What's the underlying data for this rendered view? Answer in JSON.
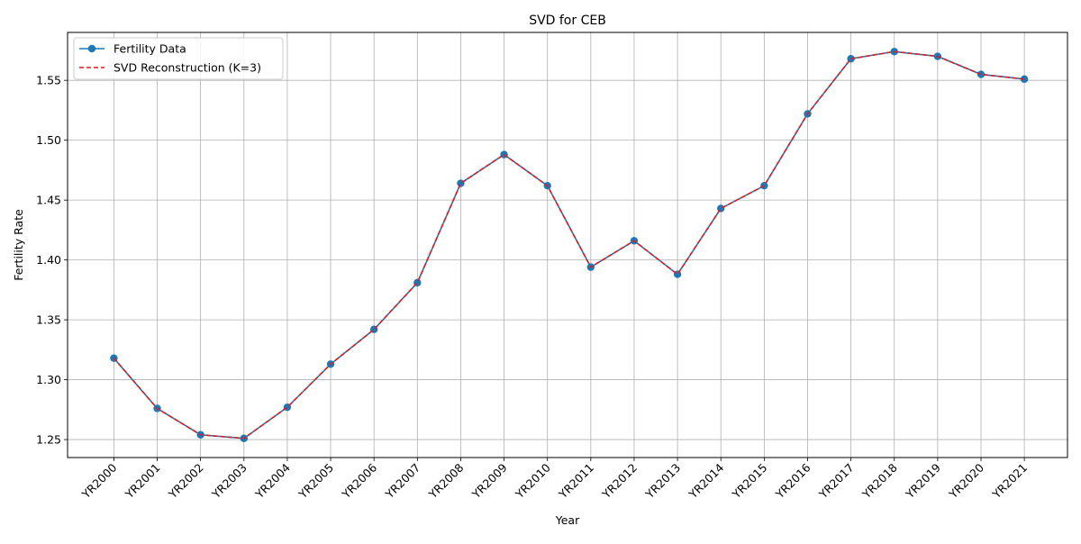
{
  "chart_data": {
    "type": "line",
    "title": "SVD for CEB",
    "xlabel": "Year",
    "ylabel": "Fertility Rate",
    "categories": [
      "YR2000",
      "YR2001",
      "YR2002",
      "YR2003",
      "YR2004",
      "YR2005",
      "YR2006",
      "YR2007",
      "YR2008",
      "YR2009",
      "YR2010",
      "YR2011",
      "YR2012",
      "YR2013",
      "YR2014",
      "YR2015",
      "YR2016",
      "YR2017",
      "YR2018",
      "YR2019",
      "YR2020",
      "YR2021"
    ],
    "ylim": [
      1.235,
      1.59
    ],
    "yticks": [
      "1.25",
      "1.30",
      "1.35",
      "1.40",
      "1.45",
      "1.50",
      "1.55"
    ],
    "grid": true,
    "legend_position": "top-left",
    "series": [
      {
        "name": "Fertility Data",
        "style": "solid line with circle markers",
        "color": "#1f77b4",
        "values": [
          1.318,
          1.276,
          1.254,
          1.251,
          1.277,
          1.313,
          1.342,
          1.381,
          1.464,
          1.488,
          1.462,
          1.394,
          1.416,
          1.388,
          1.443,
          1.462,
          1.522,
          1.568,
          1.574,
          1.57,
          1.555,
          1.551
        ]
      },
      {
        "name": "SVD Reconstruction (K=3)",
        "style": "dashed line",
        "color": "#e41a1c",
        "values": [
          1.318,
          1.276,
          1.254,
          1.251,
          1.277,
          1.313,
          1.342,
          1.381,
          1.464,
          1.488,
          1.462,
          1.394,
          1.416,
          1.388,
          1.443,
          1.462,
          1.522,
          1.568,
          1.574,
          1.57,
          1.555,
          1.551
        ]
      }
    ]
  }
}
